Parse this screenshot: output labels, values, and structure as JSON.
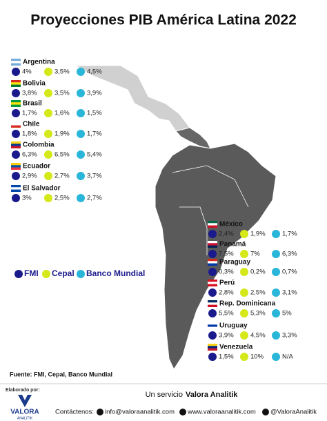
{
  "header": {
    "title": "Proyecciones PIB América Latina 2022"
  },
  "legend": [
    "FMI",
    "Cepal",
    "Banco Mundial"
  ],
  "left_countries": [
    {
      "name": "Argentina",
      "values": [
        "4%",
        "3,5%",
        "4,5%"
      ]
    },
    {
      "name": "Bolivia",
      "values": [
        "3,8%",
        "3,5%",
        "3,9%"
      ]
    },
    {
      "name": "Brasil",
      "values": [
        "1,7%",
        "1,6%",
        "1,5%"
      ]
    },
    {
      "name": "Chile",
      "values": [
        "1,8%",
        "1,9%",
        "1,7%"
      ]
    },
    {
      "name": "Colombia",
      "values": [
        "6,3%",
        "6,5%",
        "5,4%"
      ]
    },
    {
      "name": "Ecuador",
      "values": [
        "2,9%",
        "2,7%",
        "3,7%"
      ]
    },
    {
      "name": "El Salvador",
      "values": [
        "3%",
        "2,5%",
        "2,7%"
      ]
    }
  ],
  "right_countries": [
    {
      "name": "México",
      "values": [
        "2,4%",
        "1,9%",
        "1,7%"
      ]
    },
    {
      "name": "Panamá",
      "values": [
        "7,5%",
        "7%",
        "6,3%"
      ]
    },
    {
      "name": "Paraguay",
      "values": [
        "0,3%",
        "0,2%",
        "0,7%"
      ]
    },
    {
      "name": "Perú",
      "values": [
        "2,8%",
        "2,5%",
        "3,1%"
      ]
    },
    {
      "name": "Rep. Dominicana",
      "values": [
        "5,5%",
        "5,3%",
        "5%"
      ]
    },
    {
      "name": "Uruguay",
      "values": [
        "3,9%",
        "4,5%",
        "3,3%"
      ]
    },
    {
      "name": "Venezuela",
      "values": [
        "1,5%",
        "10%",
        "N/A"
      ]
    }
  ],
  "footer": {
    "source": "Fuente: FMI, Cepal, Banco Mundial",
    "made_by": "Elaborado por:",
    "logo": "VALORA",
    "logo_sub": "ANALITIK",
    "service_prefix": "Un servicio",
    "service_brand": "Valora Analitik",
    "contact": "Contáctenos:",
    "email": "info@valoraanalitik.com",
    "web": "www.valoraanalitik.com",
    "social": "@ValoraAnalitik"
  }
}
